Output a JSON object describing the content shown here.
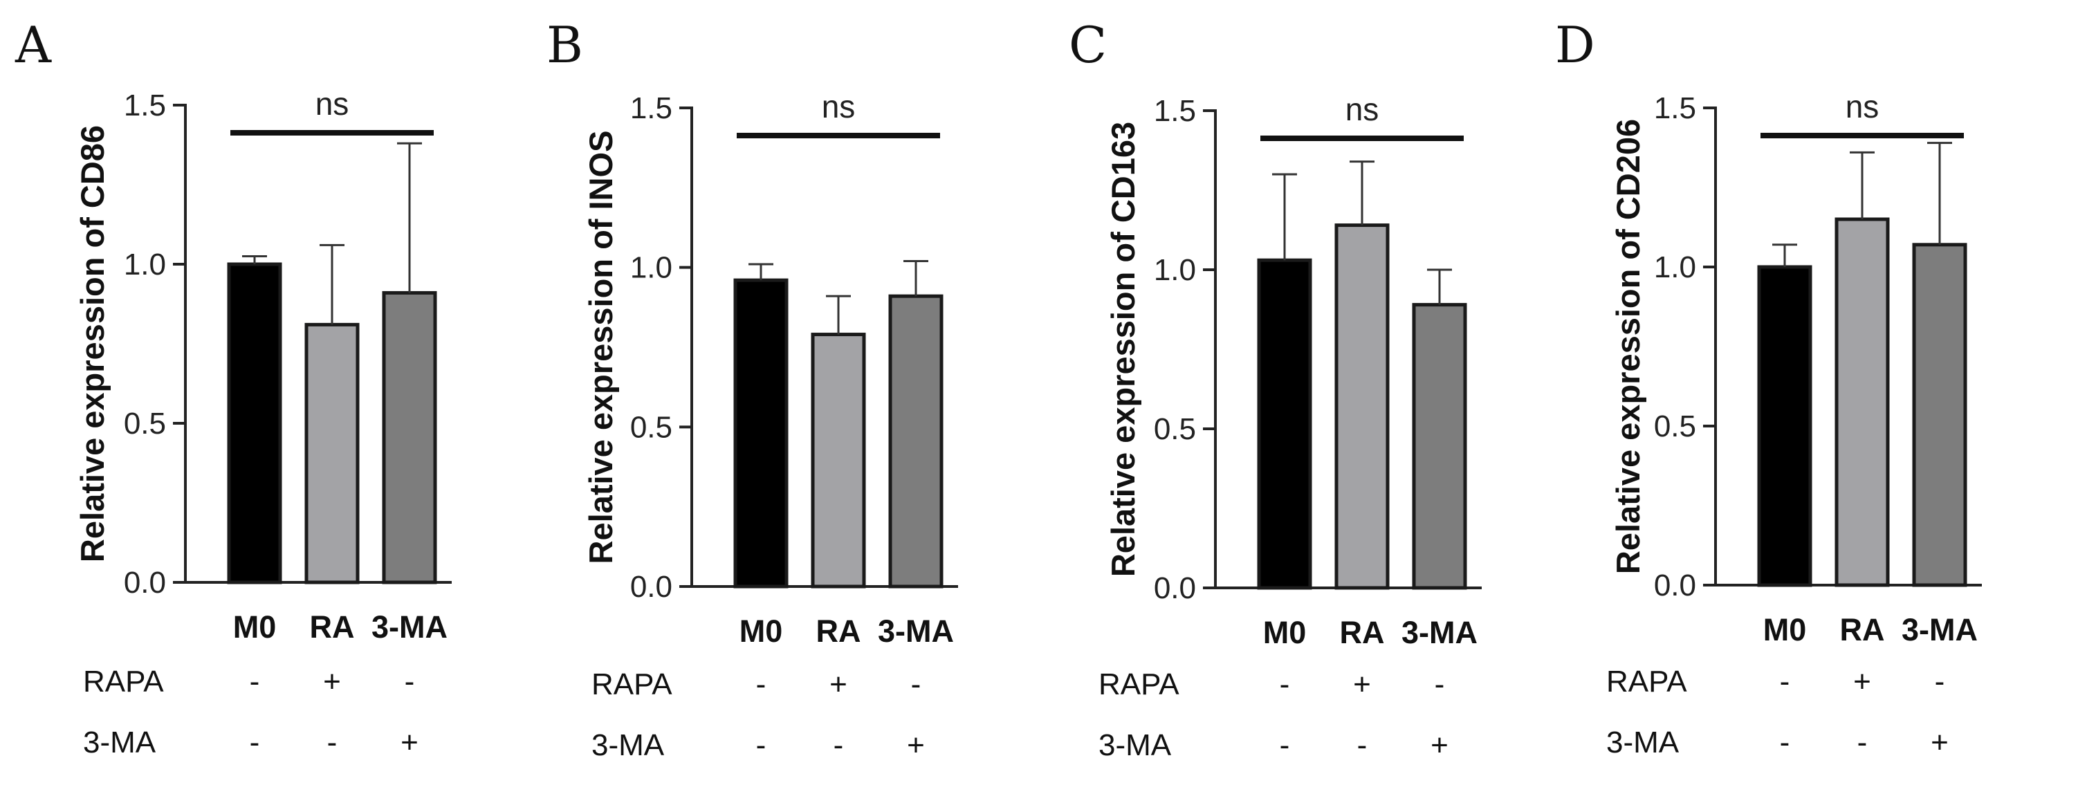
{
  "chart_data": [
    {
      "type": "bar",
      "panel": "A",
      "ylabel": "Relative expression of CD86",
      "categories": [
        "M0",
        "RA",
        "3-MA"
      ],
      "values": [
        1.0,
        0.81,
        0.91
      ],
      "errors": [
        0.025,
        0.25,
        0.47
      ],
      "ylim": [
        0,
        1.5
      ],
      "yticks": [
        "0.0",
        "0.5",
        "1.0",
        "1.5"
      ],
      "significance": "ns",
      "treatments": [
        {
          "label": "RAPA",
          "marks": [
            "-",
            "+",
            "-"
          ]
        },
        {
          "label": "3-MA",
          "marks": [
            "-",
            "-",
            "+"
          ]
        }
      ]
    },
    {
      "type": "bar",
      "panel": "B",
      "ylabel": "Relative expression of INOS",
      "categories": [
        "M0",
        "RA",
        "3-MA"
      ],
      "values": [
        0.96,
        0.79,
        0.91
      ],
      "errors": [
        0.05,
        0.12,
        0.11
      ],
      "ylim": [
        0,
        1.5
      ],
      "yticks": [
        "0.0",
        "0.5",
        "1.0",
        "1.5"
      ],
      "significance": "ns",
      "treatments": [
        {
          "label": "RAPA",
          "marks": [
            "-",
            "+",
            "-"
          ]
        },
        {
          "label": "3-MA",
          "marks": [
            "-",
            "-",
            "+"
          ]
        }
      ]
    },
    {
      "type": "bar",
      "panel": "C",
      "ylabel": "Relative expression of CD163",
      "categories": [
        "M0",
        "RA",
        "3-MA"
      ],
      "values": [
        1.03,
        1.14,
        0.89
      ],
      "errors": [
        0.27,
        0.2,
        0.11
      ],
      "ylim": [
        0,
        1.5
      ],
      "yticks": [
        "0.0",
        "0.5",
        "1.0",
        "1.5"
      ],
      "significance": "ns",
      "treatments": [
        {
          "label": "RAPA",
          "marks": [
            "-",
            "+",
            "-"
          ]
        },
        {
          "label": "3-MA",
          "marks": [
            "-",
            "-",
            "+"
          ]
        }
      ]
    },
    {
      "type": "bar",
      "panel": "D",
      "ylabel": "Relative expression of CD206",
      "categories": [
        "M0",
        "RA",
        "3-MA"
      ],
      "values": [
        1.0,
        1.15,
        1.07
      ],
      "errors": [
        0.07,
        0.21,
        0.32
      ],
      "ylim": [
        0,
        1.5
      ],
      "yticks": [
        "0.0",
        "0.5",
        "1.0",
        "1.5"
      ],
      "significance": "ns",
      "treatments": [
        {
          "label": "RAPA",
          "marks": [
            "-",
            "+",
            "-"
          ]
        },
        {
          "label": "3-MA",
          "marks": [
            "-",
            "-",
            "+"
          ]
        }
      ]
    }
  ],
  "colors": {
    "bars": [
      "#000000",
      "#a3a3a6",
      "#7d7d7d"
    ],
    "axis": "#222222",
    "background": "#ffffff"
  }
}
